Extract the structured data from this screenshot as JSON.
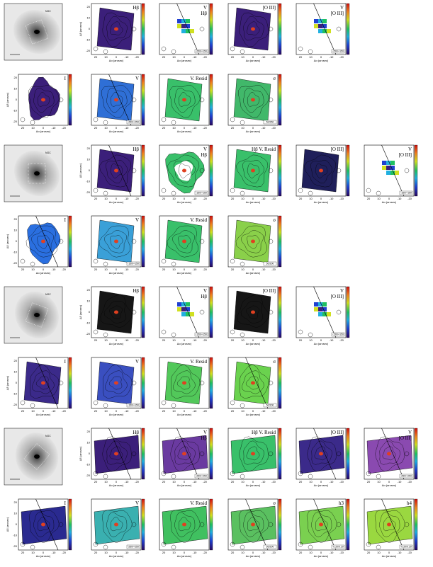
{
  "figure": {
    "axis_labels": {
      "x": "Δα (arcsec)",
      "y": "Δδ (arcsec)"
    },
    "x_ticks": [
      "20",
      "10",
      "0",
      "-10",
      "-20"
    ],
    "y_ticks": [
      "20",
      "10",
      "0",
      "-10",
      "-20"
    ],
    "image_label": "NGC",
    "colors": {
      "frame": "#000000",
      "background": "#ffffff"
    },
    "rows": [
      {
        "panels": [
          {
            "type": "image"
          },
          {
            "type": "map",
            "label": "Hβ",
            "bg": "#3b1f7a",
            "shape": "rect"
          },
          {
            "type": "map",
            "label": "V",
            "sub": "Hβ",
            "scale": "-250/+150",
            "bg": "#ffffff",
            "shape": "sparse",
            "line": true
          },
          {
            "type": "map",
            "label": "[O III]",
            "bg": "#3b1f7a",
            "shape": "rect"
          },
          {
            "type": "map",
            "label": "V",
            "sub": "[O III]",
            "scale": "-250/+150",
            "bg": "#ffffff",
            "shape": "sparse",
            "line": true
          }
        ]
      },
      {
        "panels": [
          {
            "type": "map",
            "label": "I",
            "bg": "#3b1f7a",
            "shape": "blob"
          },
          {
            "type": "map",
            "label": "V",
            "scale": "-250/+250",
            "bg": "#2f6fd6",
            "shape": "rect",
            "line": true
          },
          {
            "type": "map",
            "label": "V. Resid",
            "bg": "#39c06a",
            "shape": "rect"
          },
          {
            "type": "map",
            "label": "σ",
            "scale": "50/250",
            "bg": "#41b86a",
            "shape": "rect"
          }
        ]
      },
      {
        "panels": [
          {
            "type": "image"
          },
          {
            "type": "map",
            "label": "Hβ",
            "bg": "#3b1f7a",
            "shape": "rect",
            "line": true
          },
          {
            "type": "map",
            "label": "V",
            "sub": "Hβ",
            "scale": "-150/+150",
            "bg": "#39c06a",
            "shape": "ring"
          },
          {
            "type": "map",
            "label": "Hβ V. Resid",
            "bg": "#39c06a",
            "shape": "rect"
          },
          {
            "type": "map",
            "label": "[O III]",
            "bg": "#1f1f5a",
            "shape": "rect"
          },
          {
            "type": "map",
            "label": "V",
            "sub": "[O III]",
            "scale": "-150/+150",
            "bg": "#ffffff",
            "shape": "sparse",
            "line": true
          }
        ]
      },
      {
        "panels": [
          {
            "type": "map",
            "label": "I",
            "bg": "#2a6fe0",
            "shape": "blob",
            "line": true
          },
          {
            "type": "map",
            "label": "V",
            "scale": "-150/+150",
            "bg": "#3aa0d8",
            "shape": "rect"
          },
          {
            "type": "map",
            "label": "V. Resid",
            "bg": "#39c06a",
            "shape": "rect"
          },
          {
            "type": "map",
            "label": "σ",
            "scale": "50/200",
            "bg": "#8ad04a",
            "shape": "rect"
          }
        ]
      },
      {
        "panels": [
          {
            "type": "image"
          },
          {
            "type": "map",
            "label": "Hβ",
            "bg": "#161616",
            "shape": "rect"
          },
          {
            "type": "map",
            "label": "V",
            "sub": "Hβ",
            "scale": "-150/+150",
            "bg": "#ffffff",
            "shape": "sparse",
            "line": true
          },
          {
            "type": "map",
            "label": "[O III]",
            "bg": "#161616",
            "shape": "rect"
          },
          {
            "type": "map",
            "label": "V",
            "sub": "[O III]",
            "scale": "-150/+150",
            "bg": "#ffffff",
            "shape": "sparse",
            "line": true
          }
        ]
      },
      {
        "panels": [
          {
            "type": "map",
            "label": "I",
            "bg": "#3b2a8a",
            "shape": "rect",
            "line": true
          },
          {
            "type": "map",
            "label": "V",
            "scale": "-150/+150",
            "bg": "#3a4fc0",
            "shape": "rect"
          },
          {
            "type": "map",
            "label": "V. Resid",
            "bg": "#52c85a",
            "shape": "rect"
          },
          {
            "type": "map",
            "label": "σ",
            "scale": "50/200",
            "bg": "#6ad24e",
            "shape": "rect",
            "line": true
          }
        ]
      },
      {
        "panels": [
          {
            "type": "image"
          },
          {
            "type": "map",
            "label": "Hβ",
            "bg": "#3b1f7a",
            "shape": "wide",
            "line": true
          },
          {
            "type": "map",
            "label": "V",
            "sub": "Hβ",
            "scale": "-250/+250",
            "bg": "#6a3aa0",
            "shape": "wide",
            "line": true
          },
          {
            "type": "map",
            "label": "Hβ V. Resid",
            "bg": "#39c06a",
            "shape": "wide"
          },
          {
            "type": "map",
            "label": "[O III]",
            "bg": "#3b2a8a",
            "shape": "wide",
            "line": true
          },
          {
            "type": "map",
            "label": "V",
            "sub": "[O III]",
            "scale": "-250/+250",
            "bg": "#8a4ab0",
            "shape": "wide",
            "line": true
          }
        ]
      },
      {
        "panels": [
          {
            "type": "map",
            "label": "I",
            "bg": "#2a2a90",
            "shape": "wide",
            "line": true
          },
          {
            "type": "map",
            "label": "V",
            "scale": "-250/+250",
            "bg": "#3ab0b0",
            "shape": "wide"
          },
          {
            "type": "map",
            "label": "V. Resid",
            "bg": "#40c060",
            "shape": "wide"
          },
          {
            "type": "map",
            "label": "σ",
            "scale": "50/200",
            "bg": "#5ac060",
            "shape": "wide",
            "line": true
          },
          {
            "type": "map",
            "label": "h3",
            "scale": "-0.20/0.20",
            "bg": "#7ad050",
            "shape": "wide",
            "line": true
          },
          {
            "type": "map",
            "label": "h4",
            "scale": "-0.20/0.20",
            "bg": "#9ad840",
            "shape": "wide",
            "line": true
          }
        ]
      }
    ]
  }
}
